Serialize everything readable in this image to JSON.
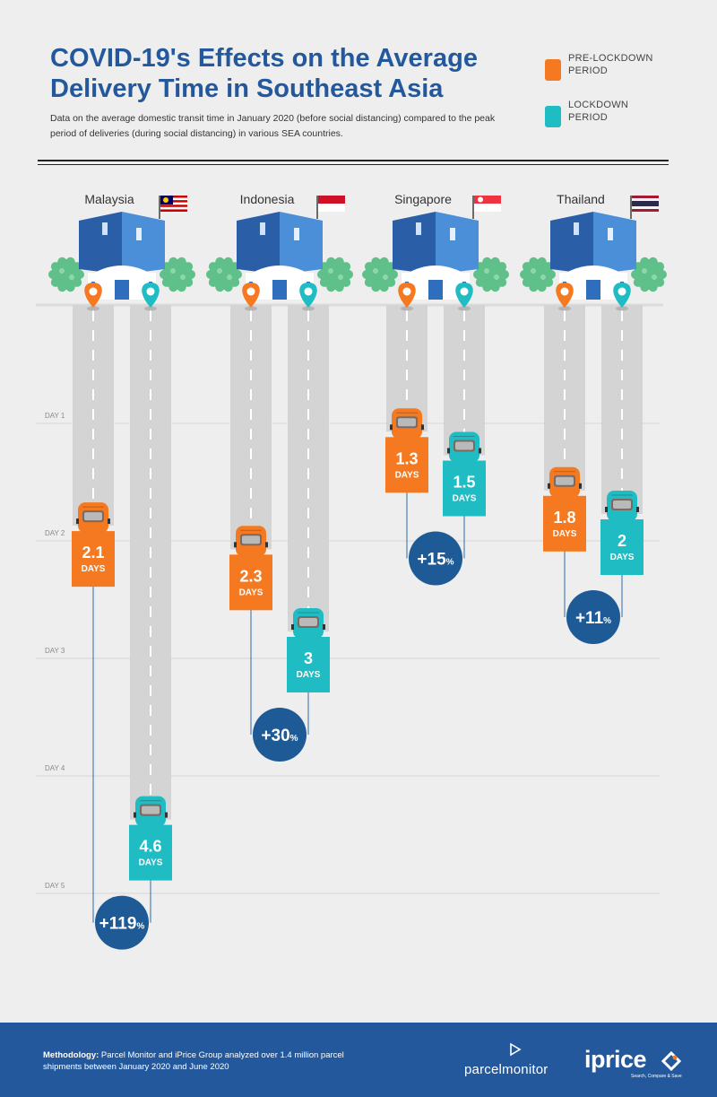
{
  "header": {
    "title": "COVID-19's Effects on the Average Delivery Time in Southeast Asia",
    "subtitle": "Data on the average domestic transit time in January 2020 (before social distancing) compared to the peak period of deliveries (during social distancing) in various SEA countries."
  },
  "legend": {
    "pre": "PRE-LOCKDOWN PERIOD",
    "lockdown": "LOCKDOWN PERIOD"
  },
  "colors": {
    "pre": "#f47920",
    "lockdown": "#1fbcc4",
    "badge": "#1d5a96",
    "building": "#2f6ebd",
    "road": "#d4d4d4",
    "tree": "#5fc08a"
  },
  "chart_data": {
    "type": "bar",
    "ylabel": "",
    "ylim": [
      0,
      5
    ],
    "yticks": [
      {
        "value": 1,
        "label": "DAY 1"
      },
      {
        "value": 2,
        "label": "DAY 2"
      },
      {
        "value": 3,
        "label": "DAY 3"
      },
      {
        "value": 4,
        "label": "DAY 4"
      },
      {
        "value": 5,
        "label": "DAY 5"
      }
    ],
    "unit_label": "DAYS",
    "categories": [
      "Malaysia",
      "Indonesia",
      "Singapore",
      "Thailand"
    ],
    "series": [
      {
        "name": "PRE-LOCKDOWN PERIOD",
        "values": [
          2.1,
          2.3,
          1.3,
          1.8
        ],
        "labels": [
          "2.1",
          "2.3",
          "1.3",
          "1.8"
        ]
      },
      {
        "name": "LOCKDOWN PERIOD",
        "values": [
          4.6,
          3,
          1.5,
          2
        ],
        "labels": [
          "4.6",
          "3",
          "1.5",
          "2"
        ]
      }
    ],
    "increase": [
      {
        "value": "+119",
        "unit": "%"
      },
      {
        "value": "+30",
        "unit": "%"
      },
      {
        "value": "+15",
        "unit": "%"
      },
      {
        "value": "+11",
        "unit": "%"
      }
    ]
  },
  "footer": {
    "method_label": "Methodology:",
    "method_text": " Parcel Monitor and iPrice Group analyzed over 1.4 million parcel shipments between January 2020 and June 2020",
    "logo_parcelmonitor": "parcelmonitor",
    "logo_iprice": "iprice",
    "logo_iprice_tagline": "Search, Compare & Save"
  }
}
